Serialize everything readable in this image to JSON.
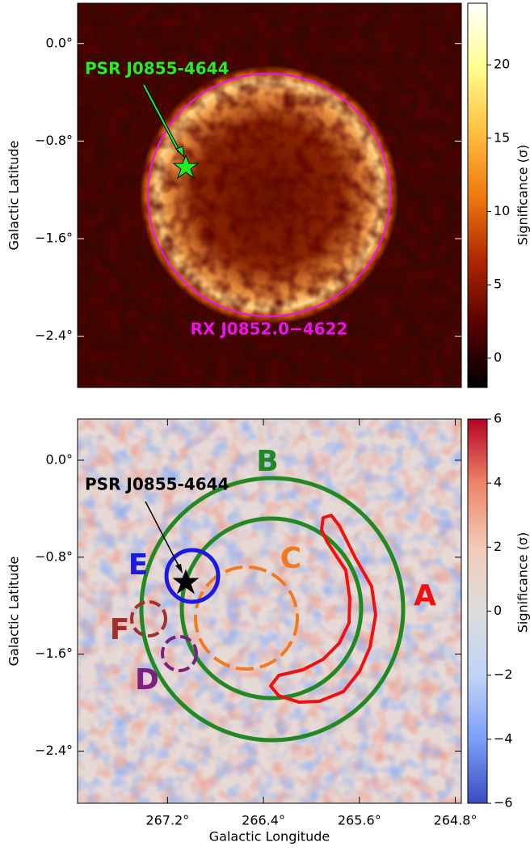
{
  "chart_data": [
    {
      "type": "heatmap",
      "ylabel": "Galactic Latitude",
      "ylim": [
        -2.82,
        0.33
      ],
      "yticks": [
        {
          "value": 0,
          "label": "0.0°"
        },
        {
          "value": -0.8,
          "label": "−0.8°"
        },
        {
          "value": -1.6,
          "label": "−1.6°"
        },
        {
          "value": -2.4,
          "label": "−2.4°"
        }
      ],
      "colorbar": {
        "label": "Significance (σ)",
        "colormap": "afmhot",
        "lim": [
          -2.0,
          24.2
        ],
        "ticks": [
          0,
          5,
          10,
          15,
          20
        ]
      },
      "annotations": [
        {
          "text": "PSR J0855-4644",
          "color": "#22ee22"
        },
        {
          "text": "RX J0852.0−4622",
          "color": "#ee11ee"
        }
      ]
    },
    {
      "type": "heatmap",
      "ylabel": "Galactic Latitude",
      "xlabel": "Galactic Longitude",
      "xlim": [
        267.95,
        264.75
      ],
      "xticks": [
        {
          "value": 267.2,
          "label": "267.2°"
        },
        {
          "value": 266.4,
          "label": "266.4°"
        },
        {
          "value": 265.6,
          "label": "265.6°"
        },
        {
          "value": 264.8,
          "label": "264.8°"
        }
      ],
      "ylim": [
        -2.83,
        0.34
      ],
      "yticks": [
        {
          "value": 0,
          "label": "0.0°"
        },
        {
          "value": -0.8,
          "label": "−0.8°"
        },
        {
          "value": -1.6,
          "label": "−1.6°"
        },
        {
          "value": -2.4,
          "label": "−2.4°"
        }
      ],
      "colorbar": {
        "label": "Significance (σ)",
        "colormap": "coolwarm",
        "lim": [
          -6,
          6
        ],
        "ticks": [
          {
            "value": -6,
            "label": "−6"
          },
          {
            "value": -4,
            "label": "−4"
          },
          {
            "value": -2,
            "label": "−2"
          },
          0,
          2,
          4,
          6
        ]
      },
      "annotations": [
        {
          "text": "PSR J0855-4644",
          "color": "#000000"
        },
        {
          "text": "A",
          "color": "#ee1111"
        },
        {
          "text": "B",
          "color": "#228822"
        },
        {
          "text": "C",
          "color": "#f07a20"
        },
        {
          "text": "D",
          "color": "#7a2080"
        },
        {
          "text": "E",
          "color": "#1a1ae0"
        },
        {
          "text": "F",
          "color": "#a03030"
        }
      ]
    }
  ]
}
